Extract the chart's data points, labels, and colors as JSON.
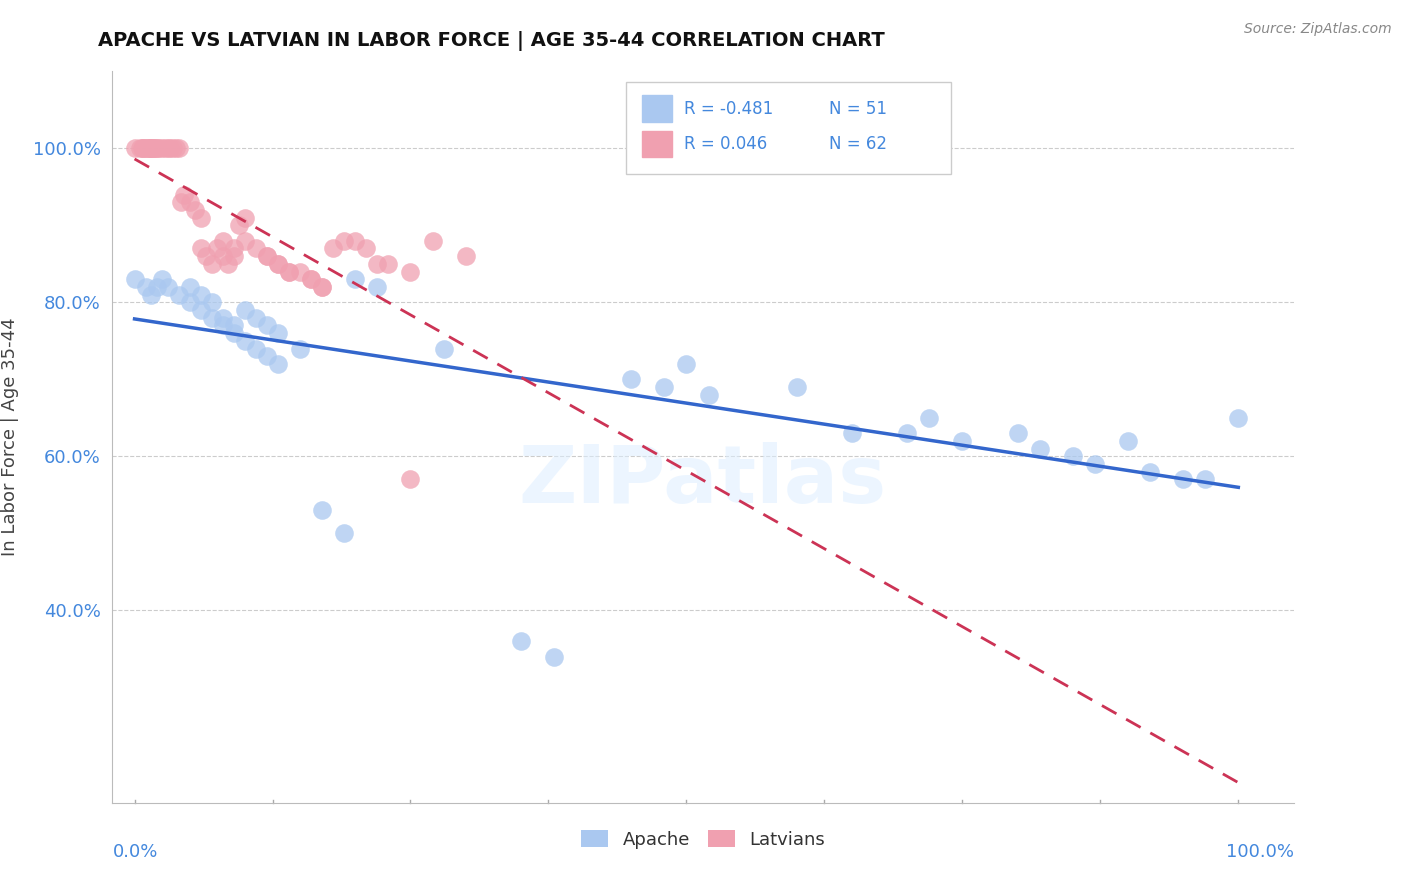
{
  "title": "APACHE VS LATVIAN IN LABOR FORCE | AGE 35-44 CORRELATION CHART",
  "source": "Source: ZipAtlas.com",
  "ylabel": "In Labor Force | Age 35-44",
  "legend_blue_label": "Apache",
  "legend_pink_label": "Latvians",
  "blue_color": "#aac8f0",
  "pink_color": "#f0a0b0",
  "blue_edge_color": "#88aadd",
  "pink_edge_color": "#dd8899",
  "blue_line_color": "#3366cc",
  "pink_line_color": "#cc3355",
  "watermark": "ZIPatlas",
  "apache_x": [
    0.0,
    0.01,
    0.015,
    0.02,
    0.025,
    0.03,
    0.04,
    0.05,
    0.06,
    0.07,
    0.08,
    0.09,
    0.1,
    0.11,
    0.12,
    0.13,
    0.2,
    0.22,
    0.28,
    0.45,
    0.48,
    0.5,
    0.52,
    0.6,
    0.65,
    0.7,
    0.72,
    0.75,
    0.8,
    0.82,
    0.85,
    0.87,
    0.9,
    0.92,
    0.95,
    0.97,
    1.0,
    0.08,
    0.09,
    0.05,
    0.06,
    0.07,
    0.1,
    0.11,
    0.12,
    0.13,
    0.15,
    0.17,
    0.19,
    0.35,
    0.38
  ],
  "apache_y": [
    0.83,
    0.82,
    0.81,
    0.82,
    0.83,
    0.82,
    0.81,
    0.8,
    0.79,
    0.78,
    0.77,
    0.76,
    0.75,
    0.74,
    0.73,
    0.72,
    0.83,
    0.82,
    0.74,
    0.7,
    0.69,
    0.72,
    0.68,
    0.69,
    0.63,
    0.63,
    0.65,
    0.62,
    0.63,
    0.61,
    0.6,
    0.59,
    0.62,
    0.58,
    0.57,
    0.57,
    0.65,
    0.78,
    0.77,
    0.82,
    0.81,
    0.8,
    0.79,
    0.78,
    0.77,
    0.76,
    0.74,
    0.53,
    0.5,
    0.36,
    0.34
  ],
  "latvian_x": [
    0.0,
    0.005,
    0.007,
    0.008,
    0.009,
    0.01,
    0.012,
    0.013,
    0.014,
    0.015,
    0.016,
    0.017,
    0.018,
    0.019,
    0.02,
    0.022,
    0.025,
    0.028,
    0.03,
    0.032,
    0.035,
    0.038,
    0.04,
    0.042,
    0.045,
    0.05,
    0.055,
    0.06,
    0.06,
    0.065,
    0.07,
    0.075,
    0.08,
    0.08,
    0.085,
    0.09,
    0.09,
    0.095,
    0.1,
    0.1,
    0.11,
    0.12,
    0.13,
    0.14,
    0.15,
    0.16,
    0.17,
    0.18,
    0.2,
    0.22,
    0.25,
    0.3,
    0.12,
    0.13,
    0.14,
    0.16,
    0.17,
    0.19,
    0.21,
    0.23,
    0.25,
    0.27
  ],
  "latvian_y": [
    1.0,
    1.0,
    1.0,
    1.0,
    1.0,
    1.0,
    1.0,
    1.0,
    1.0,
    1.0,
    1.0,
    1.0,
    1.0,
    1.0,
    1.0,
    1.0,
    1.0,
    1.0,
    1.0,
    1.0,
    1.0,
    1.0,
    1.0,
    0.93,
    0.94,
    0.93,
    0.92,
    0.91,
    0.87,
    0.86,
    0.85,
    0.87,
    0.88,
    0.86,
    0.85,
    0.87,
    0.86,
    0.9,
    0.91,
    0.88,
    0.87,
    0.86,
    0.85,
    0.84,
    0.84,
    0.83,
    0.82,
    0.87,
    0.88,
    0.85,
    0.84,
    0.86,
    0.86,
    0.85,
    0.84,
    0.83,
    0.82,
    0.88,
    0.87,
    0.85,
    0.57,
    0.88
  ],
  "xlim": [
    -0.02,
    1.05
  ],
  "ylim": [
    0.15,
    1.1
  ],
  "yticks": [
    0.4,
    0.6,
    0.8,
    1.0
  ],
  "ytick_labels": [
    "40.0%",
    "60.0%",
    "80.0%",
    "100.0%"
  ]
}
